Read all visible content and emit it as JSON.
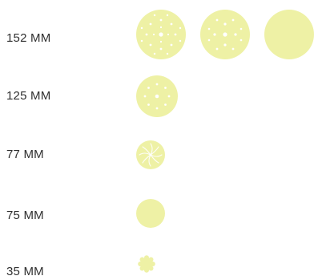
{
  "colors": {
    "disc": "#EEF1A5",
    "hole": "#FFFFFF",
    "label": "#2F2F2F"
  },
  "sizes": [
    {
      "label": "152 MM",
      "discs": [
        "multi-hole-disc-icon",
        "hole-pattern-disc-icon",
        "solid-disc-icon"
      ]
    },
    {
      "label": "125 MM",
      "discs": [
        "eight-hole-disc-icon"
      ]
    },
    {
      "label": "77 MM",
      "discs": [
        "swirl-disc-icon"
      ]
    },
    {
      "label": "75 MM",
      "discs": [
        "solid-disc-icon"
      ]
    },
    {
      "label": "35 MM",
      "discs": [
        "scalloped-disc-icon"
      ]
    }
  ]
}
